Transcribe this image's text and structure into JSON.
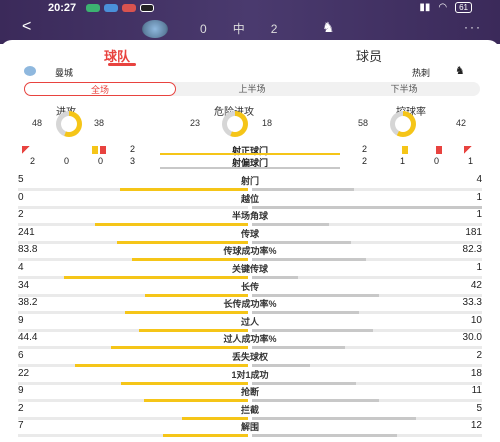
{
  "status": {
    "time": "20:27",
    "battery": "61"
  },
  "header": {
    "back": "<",
    "score_home": "0",
    "score_sep": "中",
    "score_away": "2",
    "more": "···"
  },
  "tabs": [
    {
      "label": "球队"
    },
    {
      "label": "球员"
    }
  ],
  "teams": {
    "home": "曼城",
    "away": "热刺"
  },
  "segments": [
    "全场",
    "上半场",
    "下半场"
  ],
  "donuts": [
    {
      "label": "进攻",
      "home": "48",
      "away": "38"
    },
    {
      "label": "危险进攻",
      "home": "23",
      "away": "18"
    },
    {
      "label": "控球率",
      "home": "58",
      "away": "42"
    }
  ],
  "events_top": {
    "home": "2",
    "away": "2",
    "label": "射正球门"
  },
  "events_bottom": {
    "home": [
      "2",
      "0",
      "0",
      "3"
    ],
    "away": [
      "2",
      "1",
      "0",
      "1"
    ],
    "label": "射偏球门"
  },
  "stats": [
    {
      "label": "射门",
      "home": "5",
      "away": "4"
    },
    {
      "label": "越位",
      "home": "0",
      "away": "1"
    },
    {
      "label": "半场角球",
      "home": "2",
      "away": "1"
    },
    {
      "label": "传球",
      "home": "241",
      "away": "181"
    },
    {
      "label": "传球成功率%",
      "home": "83.8",
      "away": "82.3"
    },
    {
      "label": "关键传球",
      "home": "4",
      "away": "1"
    },
    {
      "label": "长传",
      "home": "34",
      "away": "42"
    },
    {
      "label": "长传成功率%",
      "home": "38.2",
      "away": "33.3"
    },
    {
      "label": "过人",
      "home": "9",
      "away": "10"
    },
    {
      "label": "过人成功率%",
      "home": "44.4",
      "away": "30.0"
    },
    {
      "label": "丢失球权",
      "home": "6",
      "away": "2"
    },
    {
      "label": "1对1成功",
      "home": "22",
      "away": "18"
    },
    {
      "label": "抢断",
      "home": "9",
      "away": "11"
    },
    {
      "label": "拦截",
      "home": "2",
      "away": "5"
    },
    {
      "label": "解围",
      "home": "7",
      "away": "12"
    }
  ],
  "colors": {
    "home_bar": "#f5c518",
    "away_bar": "#c8c8c8",
    "accent": "#e8433f"
  }
}
